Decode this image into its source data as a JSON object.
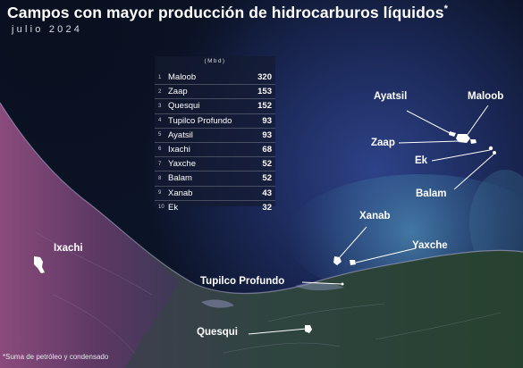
{
  "title": "Campos con mayor producción de hidrocarburos líquidos",
  "title_mark": "*",
  "subtitle": "julio 2024",
  "table": {
    "units": "(Mbd)",
    "rows": [
      {
        "rank": "1",
        "name": "Maloob",
        "value": "320"
      },
      {
        "rank": "2",
        "name": "Zaap",
        "value": "153"
      },
      {
        "rank": "3",
        "name": "Quesqui",
        "value": "152"
      },
      {
        "rank": "4",
        "name": "Tupilco Profundo",
        "value": "93"
      },
      {
        "rank": "5",
        "name": "Ayatsil",
        "value": "93"
      },
      {
        "rank": "6",
        "name": "Ixachi",
        "value": "68"
      },
      {
        "rank": "7",
        "name": "Yaxche",
        "value": "52"
      },
      {
        "rank": "8",
        "name": "Balam",
        "value": "52"
      },
      {
        "rank": "9",
        "name": "Xanab",
        "value": "43"
      },
      {
        "rank": "10",
        "name": "Ek",
        "value": "32"
      }
    ]
  },
  "map_labels": {
    "ayatsil": "Ayatsil",
    "maloob": "Maloob",
    "zaap": "Zaap",
    "ek": "Ek",
    "balam": "Balam",
    "xanab": "Xanab",
    "yaxche": "Yaxche",
    "ixachi": "Ixachi",
    "tupilco": "Tupilco Profundo",
    "quesqui": "Quesqui"
  },
  "footnote": "*Suma de petróleo y condensado",
  "colors": {
    "sea_dark": "#0b1326",
    "sea_mid": "#2a3d7a",
    "land_magenta": "#6a3a6e",
    "land_green": "#2b4a3c",
    "text": "#ffffff"
  }
}
